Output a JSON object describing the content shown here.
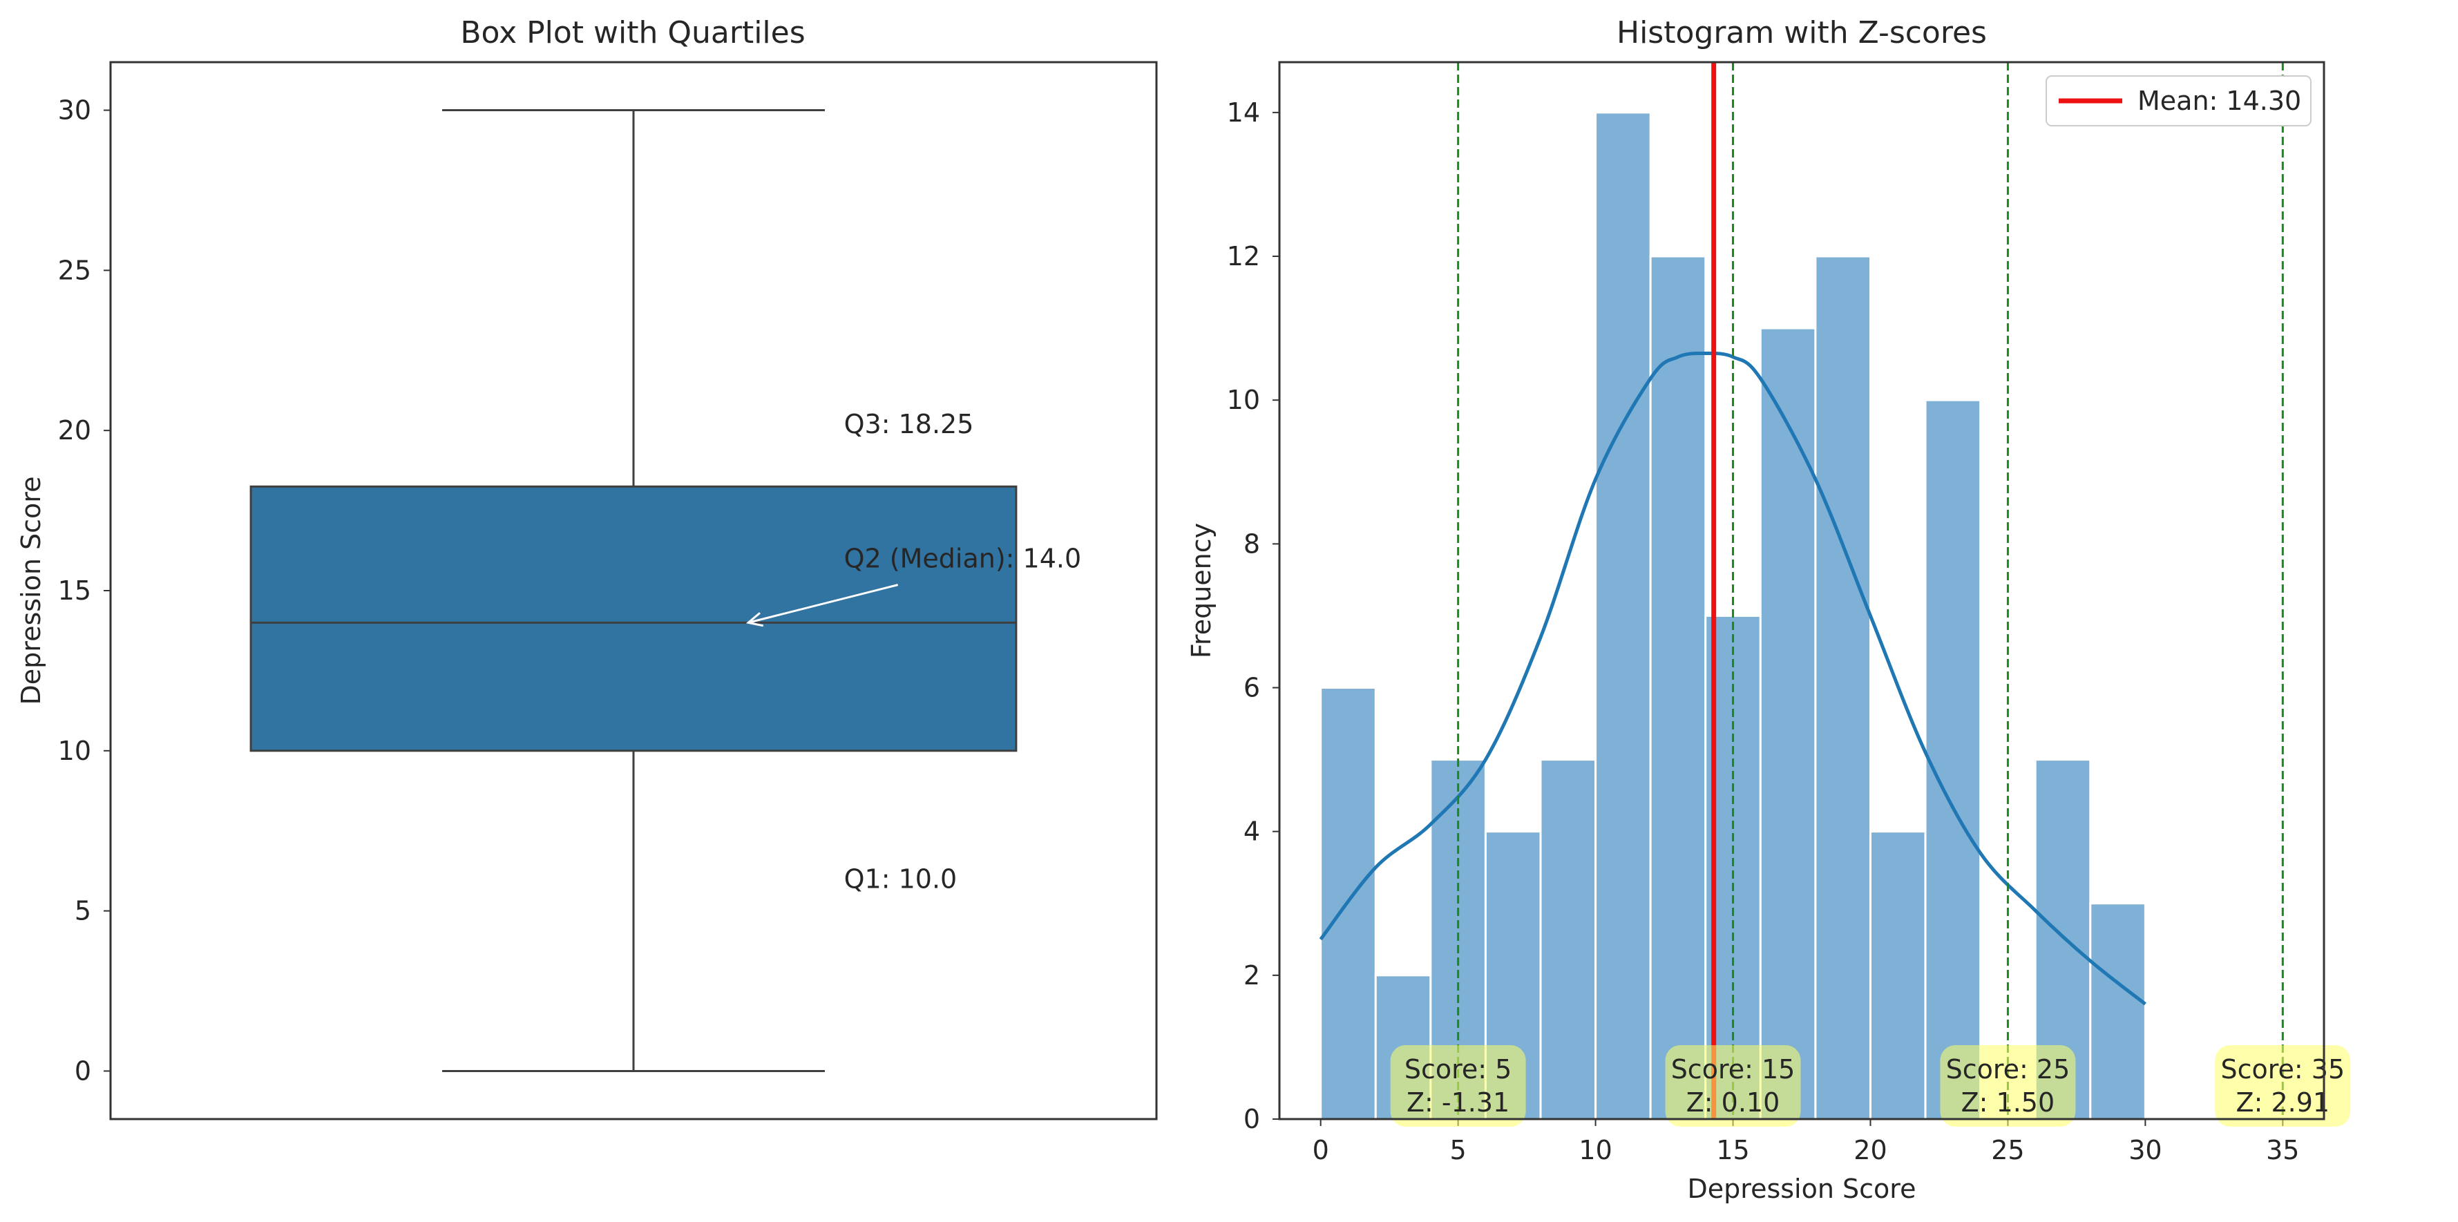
{
  "chart_data": [
    {
      "type": "box",
      "title": "Box Plot with Quartiles",
      "xlabel": "",
      "ylabel": "Depression Score",
      "ylim": [
        -1.5,
        31.5
      ],
      "yticks": [
        0,
        5,
        10,
        15,
        20,
        25,
        30
      ],
      "box": {
        "min": 0,
        "q1": 10.0,
        "median": 14.0,
        "q3": 18.25,
        "max": 30,
        "color": "#3274a1"
      },
      "annotations": [
        {
          "text": "Q3: 18.25",
          "x": 0.33,
          "y": 20.2
        },
        {
          "text": "Q2 (Median): 14.0",
          "x": 0.33,
          "y": 16.0,
          "arrow_to": {
            "x": 0.18,
            "y": 14.0
          }
        },
        {
          "text": "Q1: 10.0",
          "x": 0.33,
          "y": 6.0
        }
      ],
      "xlim": [
        -0.82,
        0.82
      ]
    },
    {
      "type": "bar",
      "title": "Histogram with Z-scores",
      "xlabel": "Depression Score",
      "ylabel": "Frequency",
      "xlim": [
        -1.5,
        36.5
      ],
      "ylim": [
        0,
        14.7
      ],
      "xticks": [
        0,
        5,
        10,
        15,
        20,
        25,
        30,
        35
      ],
      "yticks": [
        0,
        2,
        4,
        6,
        8,
        10,
        12,
        14
      ],
      "bar_color": "#7fb0d6",
      "bins": [
        {
          "start": 0,
          "end": 2,
          "count": 6
        },
        {
          "start": 2,
          "end": 4,
          "count": 2
        },
        {
          "start": 4,
          "end": 6,
          "count": 5
        },
        {
          "start": 6,
          "end": 8,
          "count": 4
        },
        {
          "start": 8,
          "end": 10,
          "count": 5
        },
        {
          "start": 10,
          "end": 12,
          "count": 14
        },
        {
          "start": 12,
          "end": 14,
          "count": 12
        },
        {
          "start": 14,
          "end": 16,
          "count": 7
        },
        {
          "start": 16,
          "end": 18,
          "count": 11
        },
        {
          "start": 18,
          "end": 20,
          "count": 12
        },
        {
          "start": 20,
          "end": 22,
          "count": 4
        },
        {
          "start": 22,
          "end": 24,
          "count": 10
        },
        {
          "start": 24,
          "end": 26,
          "count": 0
        },
        {
          "start": 26,
          "end": 28,
          "count": 5
        },
        {
          "start": 28,
          "end": 30,
          "count": 3
        }
      ],
      "kde": {
        "color": "#1f77b4",
        "x": [
          0,
          2,
          4,
          6,
          8,
          10,
          12,
          13,
          14,
          15,
          16,
          18,
          20,
          22,
          24,
          26,
          28,
          30
        ],
        "y": [
          2.5,
          3.5,
          4.1,
          5.0,
          6.7,
          8.9,
          10.3,
          10.6,
          10.65,
          10.6,
          10.3,
          8.9,
          7.0,
          5.1,
          3.7,
          2.9,
          2.2,
          1.6
        ]
      },
      "mean_line": {
        "x": 14.3,
        "label": "Mean: 14.30",
        "color": "#ee1111"
      },
      "reference_lines": [
        {
          "x": 5,
          "label_line1": "Score: 5",
          "label_line2": "Z: -1.31"
        },
        {
          "x": 15,
          "label_line1": "Score: 15",
          "label_line2": "Z: 0.10"
        },
        {
          "x": 25,
          "label_line1": "Score: 25",
          "label_line2": "Z: 1.50"
        },
        {
          "x": 35,
          "label_line1": "Score: 35",
          "label_line2": "Z: 2.91"
        }
      ],
      "reference_line_color": "#1a8a1a",
      "label_box_color": "#ffff66",
      "legend_position": "top-right"
    }
  ]
}
